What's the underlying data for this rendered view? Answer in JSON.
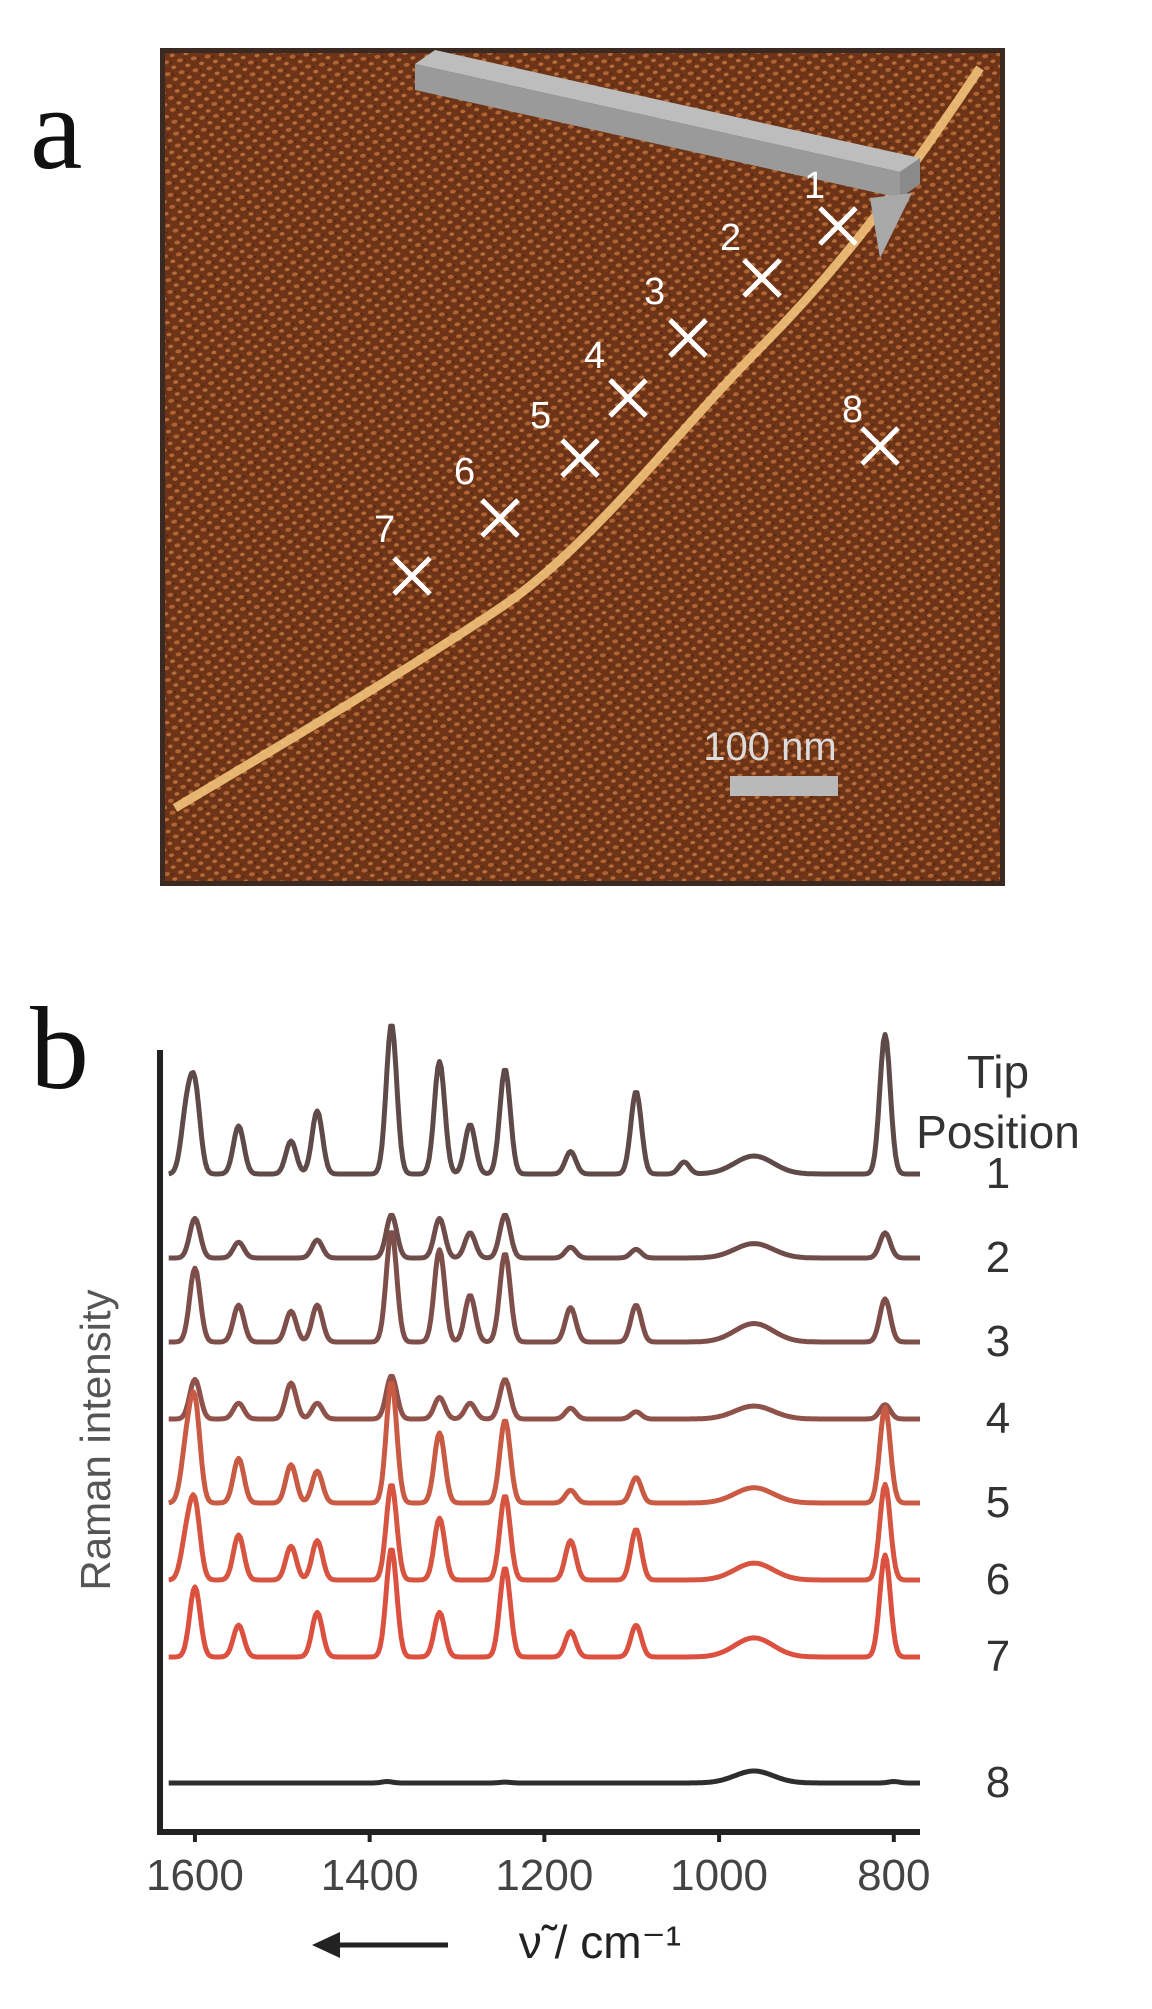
{
  "panels": {
    "a_label": "a",
    "b_label": "b"
  },
  "afm_image": {
    "markers": [
      {
        "label": "1"
      },
      {
        "label": "2"
      },
      {
        "label": "3"
      },
      {
        "label": "4"
      },
      {
        "label": "5"
      },
      {
        "label": "6"
      },
      {
        "label": "7"
      },
      {
        "label": "8"
      }
    ],
    "scale_bar_label": "100 nm",
    "background_color": "#7a3d1c",
    "fiber_color": "#f2c27a",
    "marker_color": "#ffffff",
    "tip_icon": "afm-cantilever-icon"
  },
  "chart_data": {
    "type": "line",
    "xlabel": "ν̃ / cm⁻¹",
    "ylabel": "Raman intensity",
    "x_ticks": [
      "1600",
      "1400",
      "1200",
      "1000",
      "800"
    ],
    "xlim": [
      1640,
      770
    ],
    "x_reversed": true,
    "arrow": "left",
    "legend_title_line1": "Tip",
    "legend_title_line2": "Position",
    "series": [
      {
        "name": "1",
        "color": "#5e4a48",
        "baseline": 0.92,
        "scale": 1.0,
        "peaks": [
          [
            1610,
            0.38
          ],
          [
            1600,
            0.55
          ],
          [
            1550,
            0.32
          ],
          [
            1490,
            0.22
          ],
          [
            1460,
            0.42
          ],
          [
            1375,
            1.0
          ],
          [
            1320,
            0.75
          ],
          [
            1285,
            0.33
          ],
          [
            1245,
            0.7
          ],
          [
            1170,
            0.15
          ],
          [
            1095,
            0.55
          ],
          [
            1040,
            0.08
          ],
          [
            960,
            0.12
          ],
          [
            810,
            0.93
          ]
        ]
      },
      {
        "name": "2",
        "color": "#6e4c4a",
        "baseline": 0.8,
        "scale": 0.48,
        "peaks": [
          [
            1600,
            0.55
          ],
          [
            1550,
            0.22
          ],
          [
            1460,
            0.25
          ],
          [
            1375,
            0.6
          ],
          [
            1320,
            0.55
          ],
          [
            1285,
            0.35
          ],
          [
            1245,
            0.6
          ],
          [
            1170,
            0.15
          ],
          [
            1095,
            0.12
          ],
          [
            960,
            0.2
          ],
          [
            810,
            0.35
          ]
        ]
      },
      {
        "name": "3",
        "color": "#7e4f4a",
        "baseline": 0.68,
        "scale": 0.82,
        "peaks": [
          [
            1600,
            0.6
          ],
          [
            1550,
            0.3
          ],
          [
            1490,
            0.25
          ],
          [
            1460,
            0.3
          ],
          [
            1375,
            0.9
          ],
          [
            1320,
            0.75
          ],
          [
            1285,
            0.38
          ],
          [
            1245,
            0.72
          ],
          [
            1170,
            0.28
          ],
          [
            1095,
            0.3
          ],
          [
            960,
            0.15
          ],
          [
            810,
            0.35
          ]
        ]
      },
      {
        "name": "4",
        "color": "#8e524a",
        "baseline": 0.57,
        "scale": 0.48,
        "peaks": [
          [
            1600,
            0.55
          ],
          [
            1550,
            0.22
          ],
          [
            1490,
            0.5
          ],
          [
            1460,
            0.22
          ],
          [
            1375,
            0.6
          ],
          [
            1320,
            0.3
          ],
          [
            1285,
            0.22
          ],
          [
            1245,
            0.55
          ],
          [
            1170,
            0.15
          ],
          [
            1095,
            0.1
          ],
          [
            960,
            0.18
          ],
          [
            810,
            0.2
          ]
        ]
      },
      {
        "name": "5",
        "color": "#c95a44",
        "baseline": 0.45,
        "scale": 0.85,
        "peaks": [
          [
            1610,
            0.4
          ],
          [
            1600,
            0.75
          ],
          [
            1550,
            0.35
          ],
          [
            1490,
            0.3
          ],
          [
            1460,
            0.25
          ],
          [
            1375,
            0.95
          ],
          [
            1320,
            0.55
          ],
          [
            1245,
            0.65
          ],
          [
            1170,
            0.1
          ],
          [
            1095,
            0.2
          ],
          [
            960,
            0.12
          ],
          [
            810,
            0.75
          ]
        ]
      },
      {
        "name": "6",
        "color": "#d65440",
        "baseline": 0.34,
        "scale": 0.75,
        "peaks": [
          [
            1610,
            0.35
          ],
          [
            1600,
            0.65
          ],
          [
            1550,
            0.4
          ],
          [
            1490,
            0.3
          ],
          [
            1460,
            0.35
          ],
          [
            1375,
            0.85
          ],
          [
            1320,
            0.55
          ],
          [
            1245,
            0.75
          ],
          [
            1170,
            0.35
          ],
          [
            1095,
            0.45
          ],
          [
            960,
            0.15
          ],
          [
            810,
            0.85
          ]
        ]
      },
      {
        "name": "7",
        "color": "#dc5040",
        "baseline": 0.23,
        "scale": 0.85,
        "peaks": [
          [
            1600,
            0.55
          ],
          [
            1550,
            0.25
          ],
          [
            1460,
            0.35
          ],
          [
            1375,
            0.85
          ],
          [
            1320,
            0.35
          ],
          [
            1245,
            0.7
          ],
          [
            1170,
            0.2
          ],
          [
            1095,
            0.25
          ],
          [
            960,
            0.15
          ],
          [
            810,
            0.8
          ]
        ]
      },
      {
        "name": "8",
        "color": "#2e2e2e",
        "baseline": 0.05,
        "scale": 0.2,
        "peaks": [
          [
            1380,
            0.05
          ],
          [
            1245,
            0.03
          ],
          [
            960,
            0.4
          ],
          [
            800,
            0.05
          ]
        ]
      }
    ]
  }
}
